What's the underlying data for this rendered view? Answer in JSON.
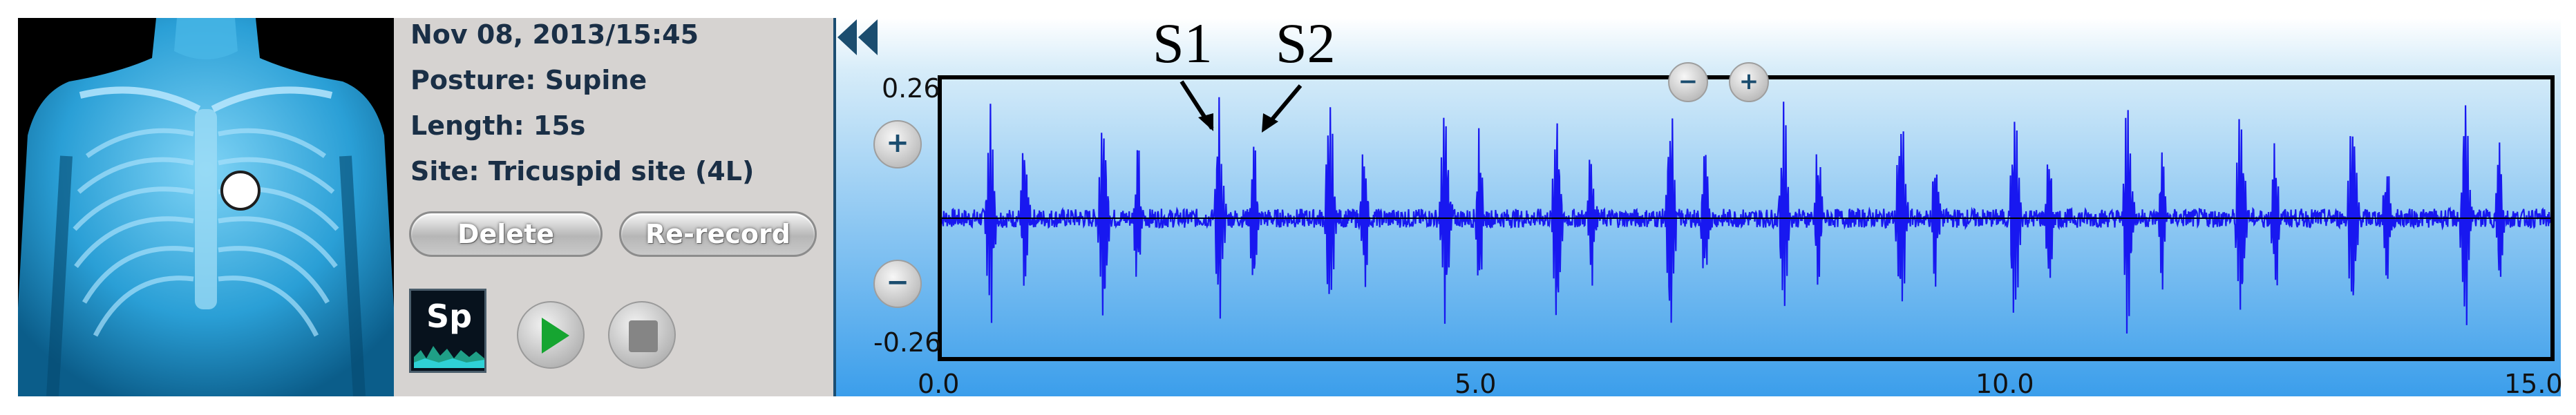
{
  "record": {
    "datetime": "Nov 08, 2013/15:45",
    "posture": "Posture: Supine",
    "length": "Length: 15s",
    "site": "Site: Tricuspid site (4L)"
  },
  "buttons": {
    "delete": "Delete",
    "rerecord": "Re-record",
    "sp_icon": "Sp",
    "zoom_in_symbol": "+",
    "zoom_out_symbol": "−"
  },
  "annotations": {
    "s1": "S1",
    "s2": "S2"
  },
  "icons": {
    "play": "play-icon",
    "stop": "stop-icon",
    "rewind": "rewind-icon",
    "site_marker": "auscultation-site-marker-icon"
  },
  "colors": {
    "waveform": "#1818f0",
    "panel_border": "#1c4e72",
    "info_background": "#d6d3d1"
  },
  "chart_data": {
    "type": "line",
    "y_tick_labels": [
      "0.26",
      "-0.26"
    ],
    "x_tick_labels": [
      "0.0",
      "5.0",
      "10.0",
      "15.0"
    ],
    "xlim": [
      0,
      15
    ],
    "ylim": [
      -0.26,
      0.26
    ],
    "grid": false,
    "beat_times_s": [
      0.45,
      1.5,
      2.58,
      3.61,
      4.68,
      5.72,
      6.78,
      7.83,
      8.92,
      9.98,
      11.03,
      12.08,
      13.12,
      14.17
    ],
    "s1_amplitude": 0.2,
    "s2_amplitude": 0.14,
    "s2_delay_s": 0.33
  }
}
